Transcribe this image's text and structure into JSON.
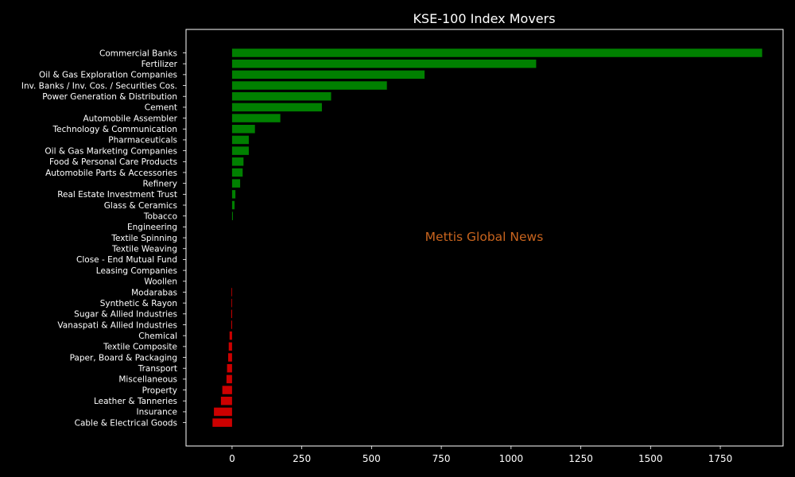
{
  "chart_data": {
    "type": "bar",
    "orientation": "horizontal",
    "title": "KSE-100 Index Movers",
    "xlabel": "",
    "ylabel": "",
    "xlim": [
      -165,
      1975
    ],
    "xticks": [
      0,
      250,
      500,
      750,
      1000,
      1250,
      1500,
      1750
    ],
    "grid": false,
    "colors": {
      "positive": "#008000",
      "negative": "#cc0000",
      "background": "#000000",
      "text": "#ffffff",
      "watermark": "#c8641e"
    },
    "categories": [
      "Commercial Banks",
      "Fertilizer",
      "Oil & Gas Exploration Companies",
      "Inv. Banks / Inv. Cos. / Securities Cos.",
      "Power Generation & Distribution",
      "Cement",
      "Automobile Assembler",
      "Technology & Communication",
      "Pharmaceuticals",
      "Oil & Gas Marketing Companies",
      "Food & Personal Care Products",
      "Automobile Parts & Accessories",
      "Refinery",
      "Real Estate Investment Trust",
      "Glass & Ceramics",
      "Tobacco",
      "Engineering",
      "Textile Spinning",
      "Textile Weaving",
      "Close - End Mutual Fund",
      "Leasing Companies",
      "Woollen",
      "Modarabas",
      "Synthetic & Rayon",
      "Sugar & Allied Industries",
      "Vanaspati & Allied Industries",
      "Chemical",
      "Textile Composite",
      "Paper, Board & Packaging",
      "Transport",
      "Miscellaneous",
      "Property",
      "Leather & Tanneries",
      "Insurance",
      "Cable & Electrical Goods"
    ],
    "values": [
      1900,
      1090,
      690,
      555,
      355,
      322,
      173,
      82,
      60,
      60,
      41,
      38,
      29,
      12,
      9,
      3,
      0,
      0,
      0,
      0,
      0,
      0,
      -2,
      -2,
      -3,
      -3,
      -9,
      -12,
      -14,
      -18,
      -20,
      -35,
      -40,
      -65,
      -70
    ]
  },
  "watermark": "Mettis Global News"
}
